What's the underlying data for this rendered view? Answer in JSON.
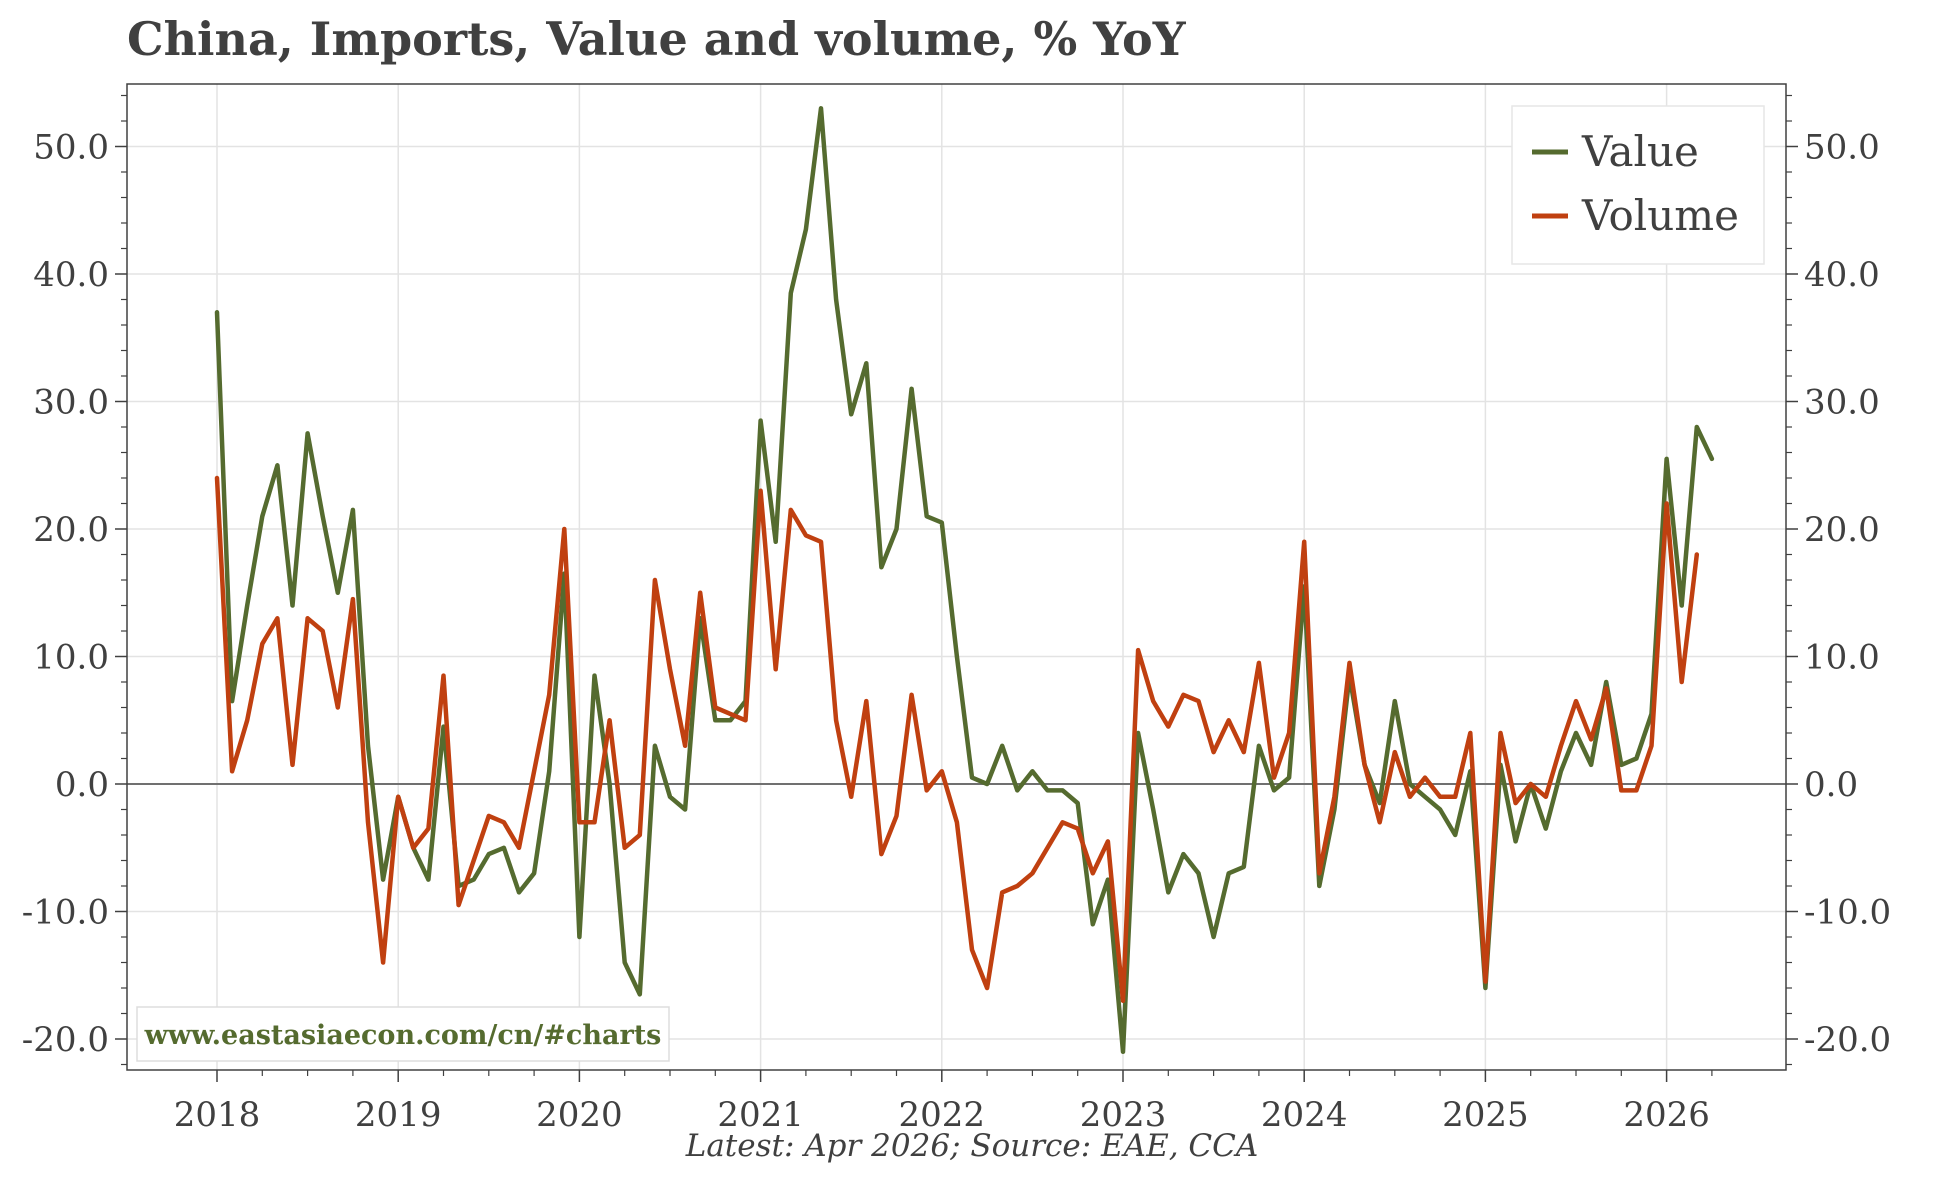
{
  "title": "China, Imports, Value and volume, % YoY",
  "footer": "Latest: Apr 2026; Source: EAE, CCA",
  "watermark": "www.eastasiaecon.com/cn/#charts",
  "colors": {
    "value": "#556b2f",
    "volume": "#c04010",
    "watermark": "#556b2f",
    "text": "#404040"
  },
  "chart_data": {
    "type": "line",
    "x_start": "2018-01",
    "x_frequency": "monthly",
    "x_ticks": [
      "2018",
      "2019",
      "2020",
      "2021",
      "2022",
      "2023",
      "2024",
      "2025",
      "2026"
    ],
    "y_ticks": [
      "50.0",
      "40.0",
      "30.0",
      "20.0",
      "10.0",
      "0.0",
      "-10.0",
      "-20.0"
    ],
    "ylim": [
      -23,
      55
    ],
    "grid": true,
    "legend_position": "top-right",
    "zero_line": true,
    "series": [
      {
        "name": "Value",
        "color": "#556b2f",
        "values": [
          37.0,
          6.5,
          14.0,
          21.0,
          25.0,
          14.0,
          27.5,
          21.0,
          15.0,
          21.5,
          3.0,
          -7.5,
          -1.0,
          -5.0,
          -7.5,
          4.5,
          -8.0,
          -7.5,
          -5.5,
          -5.0,
          -8.5,
          -7.0,
          1.0,
          16.5,
          -12.0,
          8.5,
          0.0,
          -14.0,
          -16.5,
          3.0,
          -1.0,
          -2.0,
          13.0,
          5.0,
          5.0,
          6.5,
          28.5,
          19.0,
          38.5,
          43.5,
          53.0,
          38.0,
          29.0,
          33.0,
          17.0,
          20.0,
          31.0,
          21.0,
          20.5,
          10.0,
          0.5,
          0.0,
          3.0,
          -0.5,
          1.0,
          -0.5,
          -0.5,
          -1.5,
          -11.0,
          -7.5,
          -21.0,
          4.0,
          -2.0,
          -8.5,
          -5.5,
          -7.0,
          -12.0,
          -7.0,
          -6.5,
          3.0,
          -0.5,
          0.5,
          15.5,
          -8.0,
          -2.0,
          8.5,
          1.5,
          -1.5,
          6.5,
          0.0,
          -1.0,
          -2.0,
          -4.0,
          1.0,
          -16.0,
          1.5,
          -4.5,
          0.0,
          -3.5,
          1.0,
          4.0,
          1.5,
          8.0,
          1.5,
          2.0,
          5.5,
          25.5,
          14.0,
          28.0,
          25.5
        ]
      },
      {
        "name": "Volume",
        "color": "#c04010",
        "values": [
          24.0,
          1.0,
          5.0,
          11.0,
          13.0,
          1.5,
          13.0,
          12.0,
          6.0,
          14.5,
          -3.0,
          -14.0,
          -1.0,
          -5.0,
          -3.5,
          8.5,
          -9.5,
          -6.0,
          -2.5,
          -3.0,
          -5.0,
          1.0,
          7.0,
          20.0,
          -3.0,
          -3.0,
          5.0,
          -5.0,
          -4.0,
          16.0,
          9.0,
          3.0,
          15.0,
          6.0,
          5.5,
          5.0,
          23.0,
          9.0,
          21.5,
          19.5,
          19.0,
          5.0,
          -1.0,
          6.5,
          -5.5,
          -2.5,
          7.0,
          -0.5,
          1.0,
          -3.0,
          -13.0,
          -16.0,
          -8.5,
          -8.0,
          -7.0,
          -5.0,
          -3.0,
          -3.5,
          -7.0,
          -4.5,
          -17.0,
          10.5,
          6.5,
          4.5,
          7.0,
          6.5,
          2.5,
          5.0,
          2.5,
          9.5,
          0.5,
          4.0,
          19.0,
          -7.0,
          -1.0,
          9.5,
          1.5,
          -3.0,
          2.5,
          -1.0,
          0.5,
          -1.0,
          -1.0,
          4.0,
          -15.5,
          4.0,
          -1.5,
          0.0,
          -1.0,
          3.0,
          6.5,
          3.5,
          7.5,
          -0.5,
          -0.5,
          3.0,
          22.0,
          8.0,
          18.0
        ]
      }
    ]
  }
}
